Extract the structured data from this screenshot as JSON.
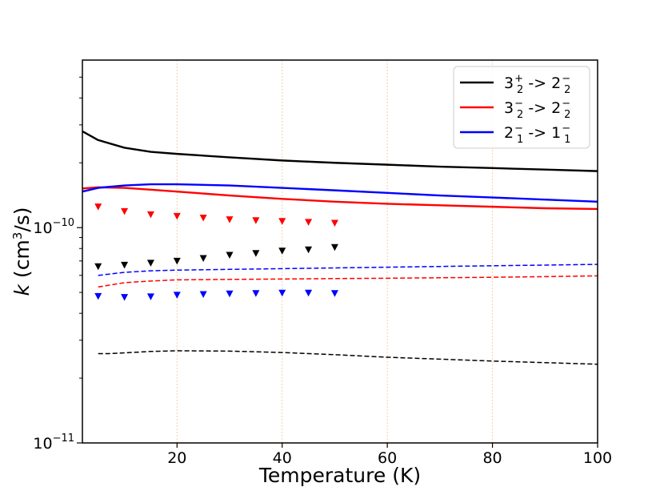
{
  "chart_data": {
    "type": "line",
    "title": "",
    "xlabel": "Temperature (K)",
    "ylabel": {
      "italic": "k",
      "pre": "(cm",
      "sup": "3",
      "post": "/s)"
    },
    "xlim": [
      2,
      100
    ],
    "ylim": [
      1e-11,
      6e-10
    ],
    "yscale": "log",
    "x_ticks": [
      20,
      40,
      60,
      80,
      100
    ],
    "y_ticks": [
      {
        "value": 1e-11,
        "base": "10",
        "exp": "−11"
      },
      {
        "value": 1e-10,
        "base": "10",
        "exp": "−10"
      }
    ],
    "grid": {
      "x": true,
      "color": "#f5cfa8"
    },
    "legend": {
      "position": "top-right",
      "entries": [
        {
          "series": "solid-black",
          "base": "3",
          "sup": "+",
          "sub": "2",
          "arrow": " -> ",
          "base2": "2",
          "sup2": "−",
          "sub2": "2"
        },
        {
          "series": "solid-red",
          "base": "3",
          "sup": "−",
          "sub": "2",
          "arrow": " -> ",
          "base2": "2",
          "sup2": "−",
          "sub2": "2"
        },
        {
          "series": "solid-blue",
          "base": "2",
          "sup": "−",
          "sub": "1",
          "arrow": " -> ",
          "base2": "1",
          "sup2": "−",
          "sub2": "1"
        }
      ]
    },
    "series": [
      {
        "name": "solid-black",
        "color": "#000000",
        "style": "solid",
        "x": [
          2,
          5,
          10,
          15,
          20,
          30,
          40,
          50,
          60,
          70,
          80,
          90,
          100
        ],
        "y": [
          2.8e-10,
          2.55e-10,
          2.35e-10,
          2.25e-10,
          2.2e-10,
          2.12e-10,
          2.05e-10,
          2e-10,
          1.96e-10,
          1.92e-10,
          1.89e-10,
          1.86e-10,
          1.83e-10
        ]
      },
      {
        "name": "solid-red",
        "color": "#ff0000",
        "style": "solid",
        "x": [
          2,
          5,
          10,
          15,
          20,
          30,
          40,
          50,
          60,
          70,
          80,
          90,
          100
        ],
        "y": [
          1.52e-10,
          1.54e-10,
          1.53e-10,
          1.5e-10,
          1.47e-10,
          1.41e-10,
          1.36e-10,
          1.32e-10,
          1.29e-10,
          1.27e-10,
          1.25e-10,
          1.23e-10,
          1.22e-10
        ]
      },
      {
        "name": "solid-blue",
        "color": "#0000ff",
        "style": "solid",
        "x": [
          2,
          5,
          10,
          15,
          20,
          30,
          40,
          50,
          60,
          70,
          80,
          90,
          100
        ],
        "y": [
          1.47e-10,
          1.53e-10,
          1.57e-10,
          1.59e-10,
          1.59e-10,
          1.57e-10,
          1.53e-10,
          1.49e-10,
          1.45e-10,
          1.41e-10,
          1.38e-10,
          1.35e-10,
          1.32e-10
        ]
      },
      {
        "name": "dashed-black",
        "color": "#000000",
        "style": "dashed",
        "x": [
          5,
          7,
          10,
          15,
          20,
          30,
          40,
          50,
          60,
          70,
          80,
          90,
          100
        ],
        "y": [
          2.6e-11,
          2.6e-11,
          2.62e-11,
          2.66e-11,
          2.68e-11,
          2.67e-11,
          2.63e-11,
          2.57e-11,
          2.5e-11,
          2.45e-11,
          2.4e-11,
          2.36e-11,
          2.32e-11
        ]
      },
      {
        "name": "dashed-red",
        "color": "#ff0000",
        "style": "dashed",
        "x": [
          5,
          10,
          15,
          20,
          30,
          40,
          50,
          60,
          70,
          80,
          90,
          100
        ],
        "y": [
          5.3e-11,
          5.55e-11,
          5.65e-11,
          5.72e-11,
          5.75e-11,
          5.77e-11,
          5.8e-11,
          5.82e-11,
          5.85e-11,
          5.88e-11,
          5.92e-11,
          5.97e-11
        ]
      },
      {
        "name": "dashed-blue",
        "color": "#0000ff",
        "style": "dashed",
        "x": [
          5,
          10,
          15,
          20,
          30,
          40,
          50,
          60,
          70,
          80,
          90,
          100
        ],
        "y": [
          6e-11,
          6.2e-11,
          6.3e-11,
          6.35e-11,
          6.4e-11,
          6.45e-11,
          6.5e-11,
          6.55e-11,
          6.6e-11,
          6.65e-11,
          6.7e-11,
          6.75e-11
        ]
      },
      {
        "name": "markers-red",
        "color": "#ff0000",
        "style": "markers",
        "x": [
          5,
          10,
          15,
          20,
          25,
          30,
          35,
          40,
          45,
          50
        ],
        "y": [
          1.25e-10,
          1.19e-10,
          1.15e-10,
          1.13e-10,
          1.11e-10,
          1.09e-10,
          1.08e-10,
          1.07e-10,
          1.06e-10,
          1.05e-10
        ]
      },
      {
        "name": "markers-black",
        "color": "#000000",
        "style": "markers",
        "x": [
          5,
          10,
          15,
          20,
          25,
          30,
          35,
          40,
          45,
          50
        ],
        "y": [
          6.6e-11,
          6.7e-11,
          6.85e-11,
          7e-11,
          7.2e-11,
          7.45e-11,
          7.6e-11,
          7.8e-11,
          7.9e-11,
          8.1e-11
        ]
      },
      {
        "name": "markers-blue",
        "color": "#0000ff",
        "style": "markers",
        "x": [
          5,
          10,
          15,
          20,
          25,
          30,
          35,
          40,
          45,
          50
        ],
        "y": [
          4.8e-11,
          4.75e-11,
          4.78e-11,
          4.86e-11,
          4.9e-11,
          4.93e-11,
          4.95e-11,
          4.97e-11,
          4.97e-11,
          4.95e-11
        ]
      }
    ]
  }
}
